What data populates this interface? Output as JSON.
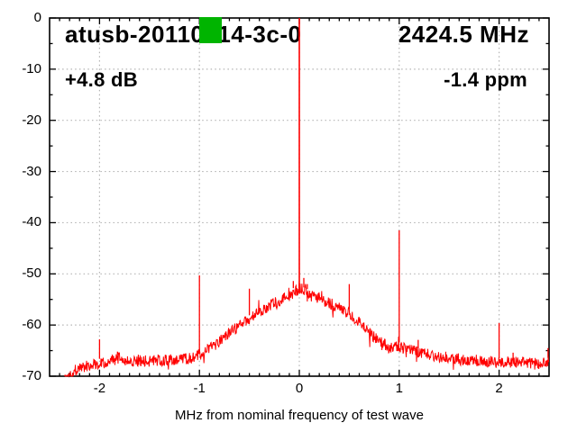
{
  "chart_data": {
    "type": "line",
    "title": "atusb-20110214-3c-0",
    "rf_frequency_label": "2424.5 MHz",
    "gain_label": "+4.8 dB",
    "ppm_error_label": "-1.4 ppm",
    "xlabel": "MHz from nominal frequency of test wave",
    "ylabel": "",
    "xlim": [
      -2.5,
      2.5
    ],
    "ylim": [
      -70,
      0
    ],
    "xticks": [
      -2,
      -1,
      0,
      1,
      2
    ],
    "yticks": [
      0,
      -10,
      -20,
      -30,
      -40,
      -50,
      -60,
      -70
    ],
    "x_minor_tick_step": 0.1,
    "y_minor_tick_step": 5,
    "grid": true,
    "legend": false,
    "colors": {
      "trace": "#ff0000",
      "grid": "#b4b4b4",
      "axis": "#000000",
      "pass_marker": "#00b400",
      "background": "#ffffff"
    },
    "data_range_x_mhz": [
      -2.35,
      2.5
    ],
    "noise_band_db_pp": 2.3,
    "sample_step_mhz": 0.0045,
    "noise_floor_db_keypoints": [
      [
        -2.35,
        -70.6
      ],
      [
        -2.28,
        -69.3
      ],
      [
        -2.2,
        -68.3
      ],
      [
        -2.1,
        -67.8
      ],
      [
        -2.0,
        -67.4
      ],
      [
        -1.9,
        -67.0
      ],
      [
        -1.8,
        -66.6
      ],
      [
        -1.7,
        -67.0
      ],
      [
        -1.6,
        -66.9
      ],
      [
        -1.5,
        -67.0
      ],
      [
        -1.4,
        -66.9
      ],
      [
        -1.3,
        -66.9
      ],
      [
        -1.2,
        -66.8
      ],
      [
        -1.1,
        -66.5
      ],
      [
        -1.0,
        -65.8
      ],
      [
        -0.9,
        -64.6
      ],
      [
        -0.8,
        -63.2
      ],
      [
        -0.7,
        -61.6
      ],
      [
        -0.6,
        -60.2
      ],
      [
        -0.5,
        -58.9
      ],
      [
        -0.4,
        -57.4
      ],
      [
        -0.3,
        -56.2
      ],
      [
        -0.2,
        -55.2
      ],
      [
        -0.1,
        -54.0
      ],
      [
        0.0,
        -53.0
      ],
      [
        0.1,
        -54.0
      ],
      [
        0.2,
        -54.7
      ],
      [
        0.3,
        -55.7
      ],
      [
        0.4,
        -56.6
      ],
      [
        0.5,
        -57.7
      ],
      [
        0.6,
        -59.4
      ],
      [
        0.7,
        -61.4
      ],
      [
        0.8,
        -63.1
      ],
      [
        0.9,
        -64.4
      ],
      [
        1.0,
        -64.2
      ],
      [
        1.1,
        -64.9
      ],
      [
        1.2,
        -65.4
      ],
      [
        1.3,
        -65.8
      ],
      [
        1.4,
        -66.1
      ],
      [
        1.6,
        -66.7
      ],
      [
        1.8,
        -66.9
      ],
      [
        2.0,
        -67.3
      ],
      [
        2.2,
        -67.2
      ],
      [
        2.35,
        -67.6
      ],
      [
        2.5,
        -67.2
      ]
    ],
    "spikes_mhz_db": [
      [
        -2.0,
        -62.8
      ],
      [
        -1.82,
        -65.2
      ],
      [
        -1.0,
        -50.3
      ],
      [
        -0.5,
        -52.9
      ],
      [
        -0.06,
        -51.4
      ],
      [
        0.045,
        -50.8
      ],
      [
        0.08,
        -52.0
      ],
      [
        0.5,
        -52.0
      ],
      [
        1.0,
        -41.5
      ],
      [
        1.19,
        -62.9
      ],
      [
        2.0,
        -59.6
      ],
      [
        2.14,
        -65.4
      ],
      [
        2.49,
        -64.5
      ]
    ],
    "main_peak": {
      "x_mhz": 0.0,
      "top_db": 0.0
    },
    "pass_marker": {
      "x_mhz": [
        -1.0,
        -0.78
      ],
      "db": [
        0.2,
        -4.9
      ]
    }
  }
}
